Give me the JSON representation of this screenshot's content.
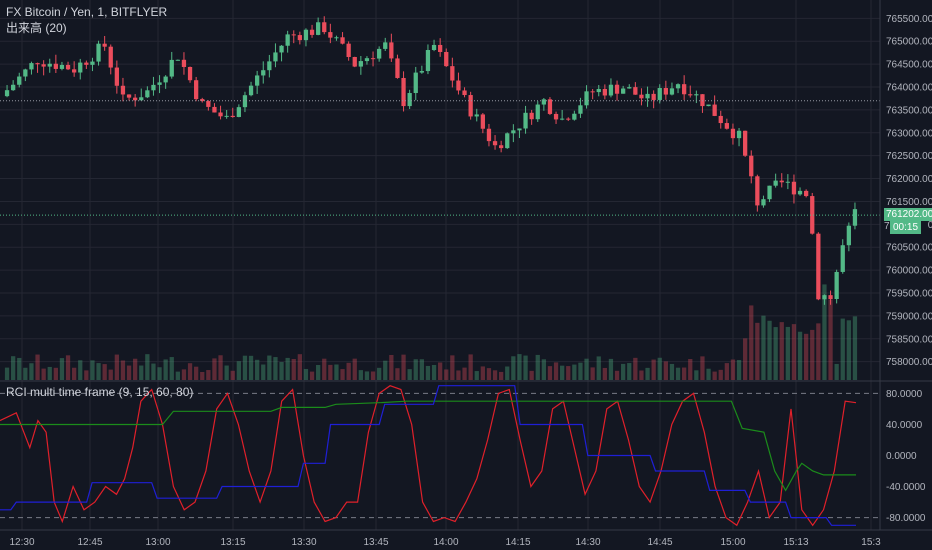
{
  "header": {
    "title": "FX Bitcoin / Yen, 1, BITFLYER",
    "volume_label": "出来高 (20)"
  },
  "indicator": {
    "title": "RCI multi time frame (9, 15, 60, 80)"
  },
  "price_badges": {
    "last_price": "761202.00",
    "countdown": "00:15",
    "hidden_partial": "761"
  },
  "colors": {
    "background": "#131722",
    "up": "#53b987",
    "down": "#eb4d5c",
    "grid": "#242733",
    "rci_fast": "#e0202a",
    "rci_mid": "#1b8c1b",
    "rci_slow": "#1f1fd6",
    "level_line": "#787b86"
  },
  "chart_data": [
    {
      "type": "candlestick",
      "title": "FX Bitcoin / Yen, 1, BITFLYER",
      "yaxis_ticks": [
        765500,
        765000,
        764500,
        764000,
        763500,
        763000,
        762500,
        762000,
        761500,
        761000,
        760500,
        760000,
        759500,
        759000,
        758500,
        758000
      ],
      "yaxis_tick_labels": [
        "765500.00",
        "765000.00",
        "764500.00",
        "764000.00",
        "763500.00",
        "763000.00",
        "762500.00",
        "762000.00",
        "761500.00",
        "761000.00",
        "760500.00",
        "760000.00",
        "759500.00",
        "759000.00",
        "758500.00",
        "758000.00"
      ],
      "ylim": [
        757600,
        765900
      ],
      "xaxis_ticks": [
        "12:30",
        "12:45",
        "13:00",
        "13:15",
        "13:30",
        "13:45",
        "14:00",
        "14:15",
        "14:30",
        "14:45",
        "15:00",
        "15:13",
        "15:3"
      ],
      "last_price": 761202,
      "reference_level": 763700,
      "candle_count": 140,
      "close_path": [
        {
          "t": 0,
          "v": 763800
        },
        {
          "t": 6,
          "v": 764600
        },
        {
          "t": 12,
          "v": 764400
        },
        {
          "t": 17,
          "v": 764900
        },
        {
          "t": 20,
          "v": 763700
        },
        {
          "t": 24,
          "v": 763900
        },
        {
          "t": 29,
          "v": 764700
        },
        {
          "t": 33,
          "v": 763600
        },
        {
          "t": 37,
          "v": 763300
        },
        {
          "t": 42,
          "v": 764200
        },
        {
          "t": 47,
          "v": 765100
        },
        {
          "t": 53,
          "v": 765300
        },
        {
          "t": 58,
          "v": 764500
        },
        {
          "t": 63,
          "v": 764900
        },
        {
          "t": 66,
          "v": 763700
        },
        {
          "t": 71,
          "v": 764900
        },
        {
          "t": 76,
          "v": 763700
        },
        {
          "t": 81,
          "v": 762700
        },
        {
          "t": 89,
          "v": 763700
        },
        {
          "t": 92,
          "v": 763300
        },
        {
          "t": 97,
          "v": 763900
        },
        {
          "t": 102,
          "v": 764000
        },
        {
          "t": 106,
          "v": 763700
        },
        {
          "t": 111,
          "v": 764100
        },
        {
          "t": 115,
          "v": 763700
        },
        {
          "t": 118,
          "v": 763300
        },
        {
          "t": 121,
          "v": 762900
        },
        {
          "t": 124,
          "v": 761500
        },
        {
          "t": 128,
          "v": 761900
        },
        {
          "t": 132,
          "v": 761700
        },
        {
          "t": 133,
          "v": 760800
        },
        {
          "t": 134,
          "v": 759500
        },
        {
          "t": 136,
          "v": 759400
        },
        {
          "t": 138,
          "v": 760500
        },
        {
          "t": 140,
          "v": 761202
        }
      ]
    },
    {
      "type": "line",
      "title": "RCI multi time frame (9, 15, 60, 80)",
      "yaxis_ticks": [
        80,
        40,
        0,
        -40,
        -80
      ],
      "yaxis_tick_labels": [
        "80.0000",
        "40.0000",
        "0.0000",
        "-40.0000",
        "-80.0000"
      ],
      "ylim": [
        -96,
        96
      ],
      "reference_lines": [
        80,
        -80
      ],
      "series": [
        {
          "key": "rci9",
          "color": "#e0202a",
          "points": [
            [
              0,
              45
            ],
            [
              6,
              55
            ],
            [
              11,
              10
            ],
            [
              14,
              45
            ],
            [
              17,
              30
            ],
            [
              20,
              -60
            ],
            [
              23,
              -85
            ],
            [
              27,
              -40
            ],
            [
              31,
              -70
            ],
            [
              35,
              -60
            ],
            [
              39,
              -40
            ],
            [
              43,
              -50
            ],
            [
              46,
              -30
            ],
            [
              49,
              10
            ],
            [
              52,
              70
            ],
            [
              56,
              85
            ],
            [
              60,
              40
            ],
            [
              64,
              -40
            ],
            [
              68,
              -70
            ],
            [
              72,
              -60
            ],
            [
              76,
              -20
            ],
            [
              80,
              60
            ],
            [
              84,
              80
            ],
            [
              88,
              40
            ],
            [
              92,
              -20
            ],
            [
              96,
              -60
            ],
            [
              100,
              -20
            ],
            [
              104,
              70
            ],
            [
              108,
              85
            ],
            [
              112,
              0
            ],
            [
              116,
              -60
            ],
            [
              120,
              -85
            ],
            [
              124,
              -80
            ],
            [
              128,
              -60
            ],
            [
              132,
              -60
            ],
            [
              136,
              30
            ],
            [
              140,
              80
            ],
            [
              144,
              90
            ],
            [
              148,
              85
            ],
            [
              152,
              40
            ],
            [
              156,
              -60
            ],
            [
              160,
              -85
            ],
            [
              164,
              -80
            ],
            [
              168,
              -85
            ],
            [
              172,
              -60
            ],
            [
              176,
              -30
            ],
            [
              180,
              20
            ],
            [
              184,
              80
            ],
            [
              188,
              85
            ],
            [
              192,
              20
            ],
            [
              196,
              -40
            ],
            [
              200,
              -20
            ],
            [
              204,
              60
            ],
            [
              208,
              70
            ],
            [
              212,
              10
            ],
            [
              216,
              -50
            ],
            [
              220,
              -20
            ],
            [
              224,
              60
            ],
            [
              228,
              70
            ],
            [
              232,
              20
            ],
            [
              236,
              -40
            ],
            [
              240,
              -60
            ],
            [
              244,
              -20
            ],
            [
              248,
              40
            ],
            [
              252,
              70
            ],
            [
              256,
              80
            ],
            [
              260,
              30
            ],
            [
              264,
              -40
            ],
            [
              268,
              -80
            ],
            [
              272,
              -90
            ],
            [
              276,
              -60
            ],
            [
              280,
              -20
            ],
            [
              284,
              -80
            ],
            [
              288,
              -60
            ],
            [
              292,
              60
            ],
            [
              296,
              -70
            ],
            [
              300,
              -90
            ],
            [
              304,
              -70
            ],
            [
              308,
              -20
            ],
            [
              312,
              70
            ],
            [
              316,
              68
            ]
          ]
        },
        {
          "key": "rci15",
          "color": "#1b8c1b",
          "points": [
            [
              0,
              40
            ],
            [
              20,
              40
            ],
            [
              40,
              40
            ],
            [
              60,
              40
            ],
            [
              64,
              57
            ],
            [
              80,
              57
            ],
            [
              100,
              57
            ],
            [
              104,
              62
            ],
            [
              120,
              62
            ],
            [
              124,
              66
            ],
            [
              140,
              68
            ],
            [
              150,
              70
            ],
            [
              190,
              70
            ],
            [
              220,
              70
            ],
            [
              235,
              70
            ],
            [
              240,
              70
            ],
            [
              270,
              70
            ],
            [
              274,
              35
            ],
            [
              282,
              30
            ],
            [
              286,
              -20
            ],
            [
              290,
              -45
            ],
            [
              294,
              -20
            ],
            [
              296,
              -10
            ],
            [
              300,
              -20
            ],
            [
              304,
              -25
            ],
            [
              316,
              -25
            ]
          ]
        },
        {
          "key": "rci60",
          "color": "#1f1fd6",
          "points": [
            [
              0,
              -70
            ],
            [
              4,
              -70
            ],
            [
              6,
              -60
            ],
            [
              32,
              -60
            ],
            [
              34,
              -35
            ],
            [
              56,
              -35
            ],
            [
              58,
              -55
            ],
            [
              80,
              -55
            ],
            [
              82,
              -40
            ],
            [
              110,
              -40
            ],
            [
              112,
              -10
            ],
            [
              120,
              -10
            ],
            [
              122,
              40
            ],
            [
              140,
              40
            ],
            [
              142,
              66
            ],
            [
              160,
              66
            ],
            [
              162,
              90
            ],
            [
              190,
              90
            ],
            [
              192,
              40
            ],
            [
              215,
              40
            ],
            [
              217,
              0
            ],
            [
              240,
              0
            ],
            [
              242,
              -20
            ],
            [
              260,
              -20
            ],
            [
              262,
              -45
            ],
            [
              275,
              -45
            ],
            [
              277,
              -60
            ],
            [
              290,
              -60
            ],
            [
              292,
              -80
            ],
            [
              305,
              -80
            ],
            [
              307,
              -90
            ],
            [
              316,
              -90
            ]
          ]
        }
      ]
    }
  ]
}
